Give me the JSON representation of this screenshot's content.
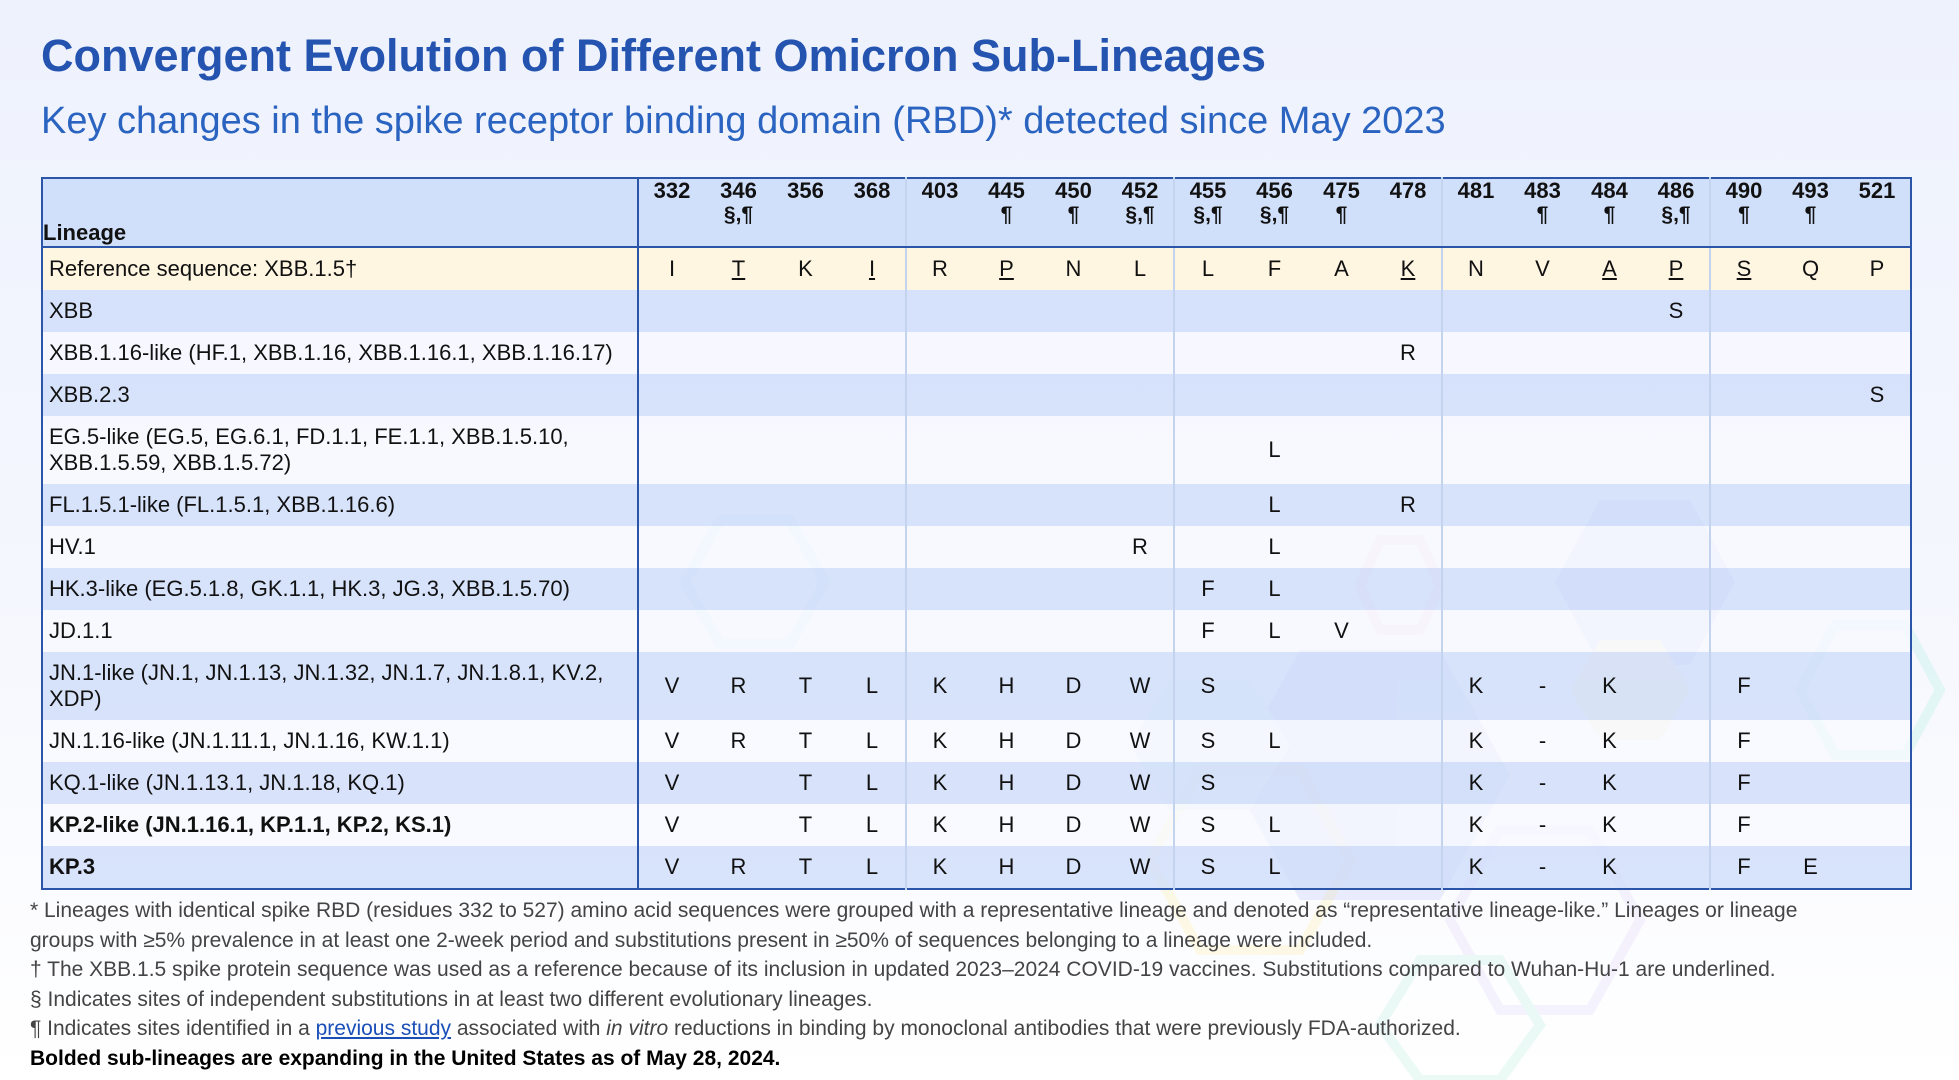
{
  "title": "Convergent Evolution of Different Omicron Sub-Lineages",
  "subtitle": "Key changes in the spike receptor binding domain (RBD)* detected since May 2023",
  "table": {
    "lineage_header": "Lineage",
    "positions": [
      {
        "num": "332",
        "sym": ""
      },
      {
        "num": "346",
        "sym": "§,¶"
      },
      {
        "num": "356",
        "sym": ""
      },
      {
        "num": "368",
        "sym": ""
      },
      {
        "num": "403",
        "sym": ""
      },
      {
        "num": "445",
        "sym": "¶"
      },
      {
        "num": "450",
        "sym": "¶"
      },
      {
        "num": "452",
        "sym": "§,¶"
      },
      {
        "num": "455",
        "sym": "§,¶"
      },
      {
        "num": "456",
        "sym": "§,¶"
      },
      {
        "num": "475",
        "sym": "¶"
      },
      {
        "num": "478",
        "sym": ""
      },
      {
        "num": "481",
        "sym": ""
      },
      {
        "num": "483",
        "sym": "¶"
      },
      {
        "num": "484",
        "sym": "¶"
      },
      {
        "num": "486",
        "sym": "§,¶"
      },
      {
        "num": "490",
        "sym": "¶"
      },
      {
        "num": "493",
        "sym": "¶"
      },
      {
        "num": "521",
        "sym": ""
      }
    ],
    "rows": [
      {
        "lineage": "Reference sequence: XBB.1.5†",
        "style": "ref",
        "bold": false,
        "cells": [
          "I",
          "T",
          "K",
          "I",
          "R",
          "P",
          "N",
          "L",
          "L",
          "F",
          "A",
          "K",
          "N",
          "V",
          "A",
          "P",
          "S",
          "Q",
          "P"
        ],
        "underline": [
          false,
          true,
          false,
          true,
          false,
          true,
          false,
          false,
          false,
          false,
          false,
          true,
          false,
          false,
          true,
          true,
          true,
          false,
          false
        ]
      },
      {
        "lineage": "XBB",
        "style": "blue",
        "bold": false,
        "cells": [
          "",
          "",
          "",
          "",
          "",
          "",
          "",
          "",
          "",
          "",
          "",
          "",
          "",
          "",
          "",
          "S",
          "",
          "",
          ""
        ]
      },
      {
        "lineage": "XBB.1.16-like (HF.1, XBB.1.16, XBB.1.16.1, XBB.1.16.17)",
        "style": "white",
        "bold": false,
        "cells": [
          "",
          "",
          "",
          "",
          "",
          "",
          "",
          "",
          "",
          "",
          "",
          "R",
          "",
          "",
          "",
          "",
          "",
          "",
          ""
        ]
      },
      {
        "lineage": "XBB.2.3",
        "style": "blue",
        "bold": false,
        "cells": [
          "",
          "",
          "",
          "",
          "",
          "",
          "",
          "",
          "",
          "",
          "",
          "",
          "",
          "",
          "",
          "",
          "",
          "",
          "S"
        ]
      },
      {
        "lineage": "EG.5-like (EG.5, EG.6.1, FD.1.1, FE.1.1, XBB.1.5.10, XBB.1.5.59, XBB.1.5.72)",
        "style": "white",
        "bold": false,
        "tall": true,
        "cells": [
          "",
          "",
          "",
          "",
          "",
          "",
          "",
          "",
          "",
          "L",
          "",
          "",
          "",
          "",
          "",
          "",
          "",
          "",
          ""
        ]
      },
      {
        "lineage": "FL.1.5.1-like (FL.1.5.1, XBB.1.16.6)",
        "style": "blue",
        "bold": false,
        "cells": [
          "",
          "",
          "",
          "",
          "",
          "",
          "",
          "",
          "",
          "L",
          "",
          "R",
          "",
          "",
          "",
          "",
          "",
          "",
          ""
        ]
      },
      {
        "lineage": "HV.1",
        "style": "white",
        "bold": false,
        "cells": [
          "",
          "",
          "",
          "",
          "",
          "",
          "",
          "R",
          "",
          "L",
          "",
          "",
          "",
          "",
          "",
          "",
          "",
          "",
          ""
        ]
      },
      {
        "lineage": "HK.3-like (EG.5.1.8, GK.1.1, HK.3, JG.3, XBB.1.5.70)",
        "style": "blue",
        "bold": false,
        "cells": [
          "",
          "",
          "",
          "",
          "",
          "",
          "",
          "",
          "F",
          "L",
          "",
          "",
          "",
          "",
          "",
          "",
          "",
          "",
          ""
        ]
      },
      {
        "lineage": "JD.1.1",
        "style": "white",
        "bold": false,
        "cells": [
          "",
          "",
          "",
          "",
          "",
          "",
          "",
          "",
          "F",
          "L",
          "V",
          "",
          "",
          "",
          "",
          "",
          "",
          "",
          ""
        ]
      },
      {
        "lineage": "JN.1-like (JN.1, JN.1.13, JN.1.32, JN.1.7, JN.1.8.1, KV.2, XDP)",
        "style": "blue",
        "bold": false,
        "tall": true,
        "cells": [
          "V",
          "R",
          "T",
          "L",
          "K",
          "H",
          "D",
          "W",
          "S",
          "",
          "",
          "",
          "K",
          "-",
          "K",
          "",
          "F",
          "",
          ""
        ]
      },
      {
        "lineage": "JN.1.16-like (JN.1.11.1, JN.1.16, KW.1.1)",
        "style": "white",
        "bold": false,
        "cells": [
          "V",
          "R",
          "T",
          "L",
          "K",
          "H",
          "D",
          "W",
          "S",
          "L",
          "",
          "",
          "K",
          "-",
          "K",
          "",
          "F",
          "",
          ""
        ]
      },
      {
        "lineage": "KQ.1-like (JN.1.13.1, JN.1.18, KQ.1)",
        "style": "blue",
        "bold": false,
        "cells": [
          "V",
          "",
          "T",
          "L",
          "K",
          "H",
          "D",
          "W",
          "S",
          "",
          "",
          "",
          "K",
          "-",
          "K",
          "",
          "F",
          "",
          ""
        ]
      },
      {
        "lineage": "KP.2-like (JN.1.16.1, KP.1.1, KP.2, KS.1)",
        "style": "white",
        "bold": true,
        "cells": [
          "V",
          "",
          "T",
          "L",
          "K",
          "H",
          "D",
          "W",
          "S",
          "L",
          "",
          "",
          "K",
          "-",
          "K",
          "",
          "F",
          "",
          ""
        ]
      },
      {
        "lineage": "KP.3",
        "style": "blue",
        "bold": true,
        "cells": [
          "V",
          "R",
          "T",
          "L",
          "K",
          "H",
          "D",
          "W",
          "S",
          "L",
          "",
          "",
          "K",
          "-",
          "K",
          "",
          "F",
          "E",
          ""
        ]
      }
    ]
  },
  "footnotes": {
    "star": "* Lineages with identical spike RBD (residues 332 to 527) amino acid sequences were grouped with a representative lineage and denoted as “representative lineage-like.” Lineages or lineage",
    "star_cont": "groups with ≥5% prevalence in at least one 2-week period and substitutions present in ≥50% of sequences belonging to a lineage were included.",
    "dagger": "† The XBB.1.5 spike protein sequence was used as a reference because of its inclusion in updated 2023–2024 COVID-19 vaccines. Substitutions compared to Wuhan-Hu-1 are underlined.",
    "section": "§ Indicates sites of independent substitutions in at least two different evolutionary lineages.",
    "pilcrow_before": "¶ Indicates sites identified in a ",
    "pilcrow_link": "previous study",
    "pilcrow_middle": " associated with ",
    "pilcrow_italic": "in vitro",
    "pilcrow_after": " reductions in binding by monoclonal antibodies that were previously FDA-authorized.",
    "bold_note": "Bolded sub-lineages are expanding in the United States as of May 28, 2024."
  },
  "colors": {
    "title": "#2454b0",
    "subtitle": "#2a64c0",
    "table_border": "#2b55a8",
    "header_bg": "#cedcfa",
    "reference_row_bg": "#fff6e0",
    "blue_row_bg": "#cedcfa",
    "link": "#1a4fb8"
  }
}
